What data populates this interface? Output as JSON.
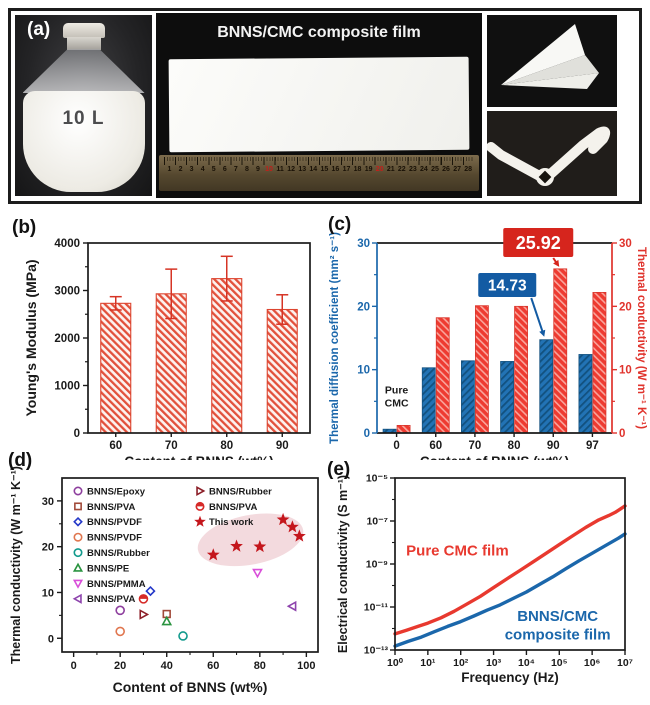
{
  "panels": {
    "a": {
      "tag": "(a)"
    },
    "b": {
      "tag": "(b)"
    },
    "c": {
      "tag": "(c)"
    },
    "d": {
      "tag": "(d)"
    },
    "e": {
      "tag": "(e)"
    }
  },
  "panel_a": {
    "bottle_label": "10 L",
    "film_title": "BNNS/CMC composite film",
    "ruler_numbers": [
      1,
      2,
      3,
      4,
      5,
      6,
      7,
      8,
      9,
      10,
      11,
      12,
      13,
      14,
      15,
      16,
      17,
      18,
      19,
      20,
      21,
      22,
      23,
      24,
      25,
      26,
      27,
      28
    ],
    "ruler_red_numbers": [
      10,
      20
    ]
  },
  "chart_data": [
    {
      "id": "b",
      "type": "bar",
      "xlabel": "Content of BNNS (wt%)",
      "ylabel": "Young's Modulus (MPa)",
      "categories": [
        "60",
        "70",
        "80",
        "90"
      ],
      "values": [
        2730,
        2930,
        3250,
        2600
      ],
      "errors": [
        140,
        520,
        470,
        310
      ],
      "ylim": [
        0,
        4000
      ],
      "yticks": [
        0,
        1000,
        2000,
        3000,
        4000
      ],
      "yminor": 500,
      "colors": {
        "bar_base": "#fdf2ef",
        "bar_stripe": "#e2503b",
        "bar_edge": "#dd4530",
        "error": "#d63425",
        "axis": "#1a1a1a"
      }
    },
    {
      "id": "c",
      "type": "dual-bar",
      "xlabel": "Content of BNNS (wt%)",
      "ylabel_left": "Thermal diffusion coefficient (mm² s⁻¹)",
      "ylabel_right": "Thermal conductivity (W m⁻¹ K⁻¹)",
      "categories": [
        "0",
        "60",
        "70",
        "80",
        "90",
        "97"
      ],
      "series": [
        {
          "name": "Thermal diffusion coefficient",
          "values": [
            0.6,
            10.3,
            11.4,
            11.3,
            14.73,
            12.4
          ],
          "base": "#2273b5",
          "stripe": "#12517f",
          "edge": "#14527f"
        },
        {
          "name": "Thermal conductivity",
          "values": [
            1.2,
            18.2,
            20.1,
            20.0,
            25.92,
            22.2
          ],
          "base": "#ee3b31",
          "stripe": "#f9a59c",
          "edge": "#d8352b"
        }
      ],
      "ylim": [
        0,
        30
      ],
      "yticks": [
        0,
        10,
        20,
        30
      ],
      "yminor": 5,
      "left_color": "#1b67ab",
      "right_color": "#e0332c",
      "annotations": [
        {
          "text": "25.92",
          "box": "#d6251d",
          "series": 1,
          "category": 4
        },
        {
          "text": "14.73",
          "box": "#135ba3",
          "series": 0,
          "category": 4
        }
      ],
      "note": {
        "line1": "Pure",
        "line2": "CMC",
        "category": 0
      }
    },
    {
      "id": "d",
      "type": "scatter",
      "xlabel": "Content of BNNS (wt%)",
      "ylabel": "Thermal conductivity (W m⁻¹ K⁻¹)",
      "xlim": [
        -5,
        105
      ],
      "ylim": [
        -3,
        35
      ],
      "xticks": [
        0,
        20,
        40,
        60,
        80,
        100
      ],
      "yticks": [
        0,
        10,
        20,
        30
      ],
      "xminor": 10,
      "yminor": 5,
      "series": [
        {
          "name": "BNNS/Epoxy",
          "marker": "circle",
          "color": "#8e3f9e",
          "points": [
            [
              20,
              6.1
            ]
          ]
        },
        {
          "name": "BNNS/PVA",
          "marker": "square",
          "color": "#a14a3a",
          "points": [
            [
              40,
              5.3
            ]
          ]
        },
        {
          "name": "BNNS/PVDF",
          "marker": "diamond",
          "color": "#2438c8",
          "points": [
            [
              33,
              10.3
            ]
          ]
        },
        {
          "name": "BNNS/PVDF",
          "marker": "circle",
          "color": "#e0764f",
          "points": [
            [
              20,
              1.5
            ]
          ]
        },
        {
          "name": "BNNS/Rubber",
          "marker": "circle",
          "color": "#129a8c",
          "points": [
            [
              47,
              0.5
            ]
          ]
        },
        {
          "name": "BNNS/PE",
          "marker": "triangle-up",
          "color": "#2a9440",
          "points": [
            [
              40,
              3.7
            ]
          ]
        },
        {
          "name": "BNNS/PMMA",
          "marker": "triangle-down",
          "color": "#d94fd9",
          "points": [
            [
              79,
              14.3
            ]
          ]
        },
        {
          "name": "BNNS/PVA",
          "marker": "triangle-left",
          "color": "#8e44ad",
          "points": [
            [
              94,
              7.0
            ]
          ]
        },
        {
          "name": "BNNS/Rubber",
          "marker": "triangle-right",
          "color": "#8c1f28",
          "points": [
            [
              30,
              5.2
            ]
          ]
        },
        {
          "name": "BNNS/PVA",
          "marker": "circle-half",
          "color": "#d62a28",
          "points": [
            [
              30,
              8.6
            ]
          ]
        },
        {
          "name": "This work",
          "marker": "star",
          "color": "#c4161c",
          "points": [
            [
              60,
              18.2
            ],
            [
              70,
              20.1
            ],
            [
              80,
              20.0
            ],
            [
              90,
              25.9
            ],
            [
              94,
              24.3
            ],
            [
              97,
              22.3
            ]
          ]
        }
      ],
      "ellipse": {
        "cx": 76,
        "cy": 21.5,
        "rx": 23,
        "ry": 5.4,
        "rot": -11,
        "color": "#e9bcc3",
        "opacity": 0.55
      },
      "legend": {
        "col1": [
          0,
          1,
          2,
          3,
          4,
          5,
          6,
          7
        ],
        "col2": [
          8,
          9,
          10
        ]
      }
    },
    {
      "id": "e",
      "type": "logline",
      "xlabel": "Frequency (Hz)",
      "ylabel": "Electrical conductivity (S m⁻¹)",
      "xexp": [
        0,
        7
      ],
      "yexp": [
        -13,
        -5
      ],
      "xtick_labels": [
        "10⁰",
        "10¹",
        "10²",
        "10³",
        "10⁴",
        "10⁵",
        "10⁶",
        "10⁷"
      ],
      "ytick_exps": [
        -13,
        -11,
        -9,
        -7,
        -5
      ],
      "ytick_labels": [
        "10⁻¹³",
        "10⁻¹¹",
        "10⁻⁹",
        "10⁻⁷",
        "10⁻⁵"
      ],
      "series": [
        {
          "name": "Pure CMC film",
          "color": "#e8392f",
          "points": [
            [
              0,
              -12.25
            ],
            [
              0.35,
              -12.08
            ],
            [
              0.7,
              -11.9
            ],
            [
              1,
              -11.75
            ],
            [
              1.4,
              -11.5
            ],
            [
              1.8,
              -11.2
            ],
            [
              2.2,
              -10.85
            ],
            [
              2.6,
              -10.5
            ],
            [
              3,
              -10.1
            ],
            [
              3.4,
              -9.7
            ],
            [
              3.8,
              -9.3
            ],
            [
              4.2,
              -8.9
            ],
            [
              4.6,
              -8.5
            ],
            [
              5,
              -8.1
            ],
            [
              5.4,
              -7.7
            ],
            [
              5.8,
              -7.3
            ],
            [
              6.2,
              -6.95
            ],
            [
              6.5,
              -6.75
            ],
            [
              6.7,
              -6.6
            ],
            [
              6.85,
              -6.45
            ],
            [
              7,
              -6.3
            ]
          ]
        },
        {
          "name": "BNNS/CMC composite film",
          "color": "#1b67ab",
          "points": [
            [
              0,
              -12.82
            ],
            [
              0.4,
              -12.6
            ],
            [
              0.8,
              -12.4
            ],
            [
              1.2,
              -12.15
            ],
            [
              1.6,
              -11.9
            ],
            [
              2,
              -11.68
            ],
            [
              2.4,
              -11.42
            ],
            [
              2.8,
              -11.15
            ],
            [
              3.2,
              -10.9
            ],
            [
              3.6,
              -10.6
            ],
            [
              4,
              -10.3
            ],
            [
              4.4,
              -9.95
            ],
            [
              4.8,
              -9.6
            ],
            [
              5.2,
              -9.22
            ],
            [
              5.6,
              -8.85
            ],
            [
              6,
              -8.5
            ],
            [
              6.4,
              -8.15
            ],
            [
              6.8,
              -7.8
            ],
            [
              7,
              -7.6
            ]
          ]
        }
      ],
      "labels": [
        {
          "text": "Pure CMC film",
          "color": "#e8392f",
          "ax": 1.9,
          "ay": -8.6
        },
        {
          "text": "BNNS/CMC",
          "color": "#1b67ab",
          "ax": 4.95,
          "ay": -11.65
        },
        {
          "text": "composite film",
          "color": "#1b67ab",
          "ax": 4.95,
          "ay": -12.5
        }
      ]
    }
  ]
}
